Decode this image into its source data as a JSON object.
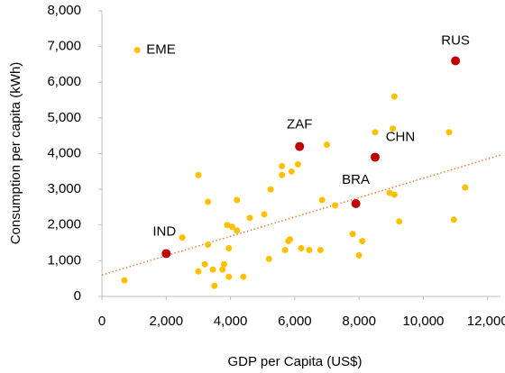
{
  "chart_data": {
    "type": "scatter",
    "x_label": "GDP per Capita (US$)",
    "y_label": "Consumption per capita (kWh)",
    "xlim": [
      0,
      12400
    ],
    "ylim": [
      0,
      8000
    ],
    "xticks": [
      0,
      {
        "value": 2000,
        "label": "2,000"
      },
      {
        "value": 4000,
        "label": "4,000"
      },
      {
        "value": 6000,
        "label": "6,000"
      },
      {
        "value": 8000,
        "label": "8,000"
      },
      {
        "value": 10000,
        "label": "10,000"
      },
      {
        "value": 12000,
        "label": "12,000"
      }
    ],
    "yticks": [
      0,
      {
        "value": 1000,
        "label": "1,000"
      },
      {
        "value": 2000,
        "label": "2,000"
      },
      {
        "value": 3000,
        "label": "3,000"
      },
      {
        "value": 4000,
        "label": "4,000"
      },
      {
        "value": 5000,
        "label": "5,000"
      },
      {
        "value": 6000,
        "label": "6,000"
      },
      {
        "value": 7000,
        "label": "7,000"
      },
      {
        "value": 8000,
        "label": "8,000"
      }
    ],
    "trendline": {
      "intercept": 600,
      "slope": 0.271,
      "color": "#ed7d31",
      "style": "dotted"
    },
    "series": [
      {
        "color": "#ffc000",
        "x": [
          1100,
          700,
          2500,
          3000,
          3300,
          3300,
          3200,
          3000,
          3450,
          3500,
          3750,
          3800,
          3900,
          3950,
          4050,
          4200,
          3950,
          4200,
          4400,
          4600,
          5050,
          5250,
          5200,
          5600,
          5600,
          5700,
          5800,
          5850,
          5900,
          6100,
          6200,
          6450,
          6800,
          6850,
          7000,
          7250,
          7800,
          8000,
          8100,
          8500,
          8950,
          9100,
          9100,
          9050,
          9250,
          10800,
          10950,
          11300
        ],
        "values": [
          6900,
          450,
          1650,
          3400,
          2650,
          1450,
          900,
          700,
          750,
          300,
          750,
          900,
          2000,
          1350,
          1950,
          1850,
          550,
          2700,
          550,
          2200,
          2300,
          3000,
          1050,
          3650,
          3400,
          1300,
          1550,
          1600,
          3500,
          3700,
          1350,
          1300,
          1300,
          2700,
          4250,
          2550,
          1750,
          1150,
          1550,
          4600,
          2900,
          2850,
          5600,
          4700,
          2100,
          4600,
          2150,
          3050
        ],
        "labels": [
          "EME",
          null,
          null,
          null,
          null,
          null,
          null,
          null,
          null,
          null,
          null,
          null,
          null,
          null,
          null,
          null,
          null,
          null,
          null,
          null,
          null,
          null,
          null,
          null,
          null,
          null,
          null,
          null,
          null,
          null,
          null,
          null,
          null,
          null,
          null,
          null,
          null,
          null,
          null,
          null,
          null,
          null,
          null,
          null,
          null,
          null,
          null,
          null
        ]
      },
      {
        "color": "#c00000",
        "x": [
          11000,
          6150,
          8500,
          7900,
          2000
        ],
        "values": [
          6600,
          4200,
          3900,
          2600,
          1200
        ],
        "labels": [
          "RUS",
          "ZAF",
          "CHN",
          "BRA",
          "IND"
        ]
      }
    ]
  }
}
